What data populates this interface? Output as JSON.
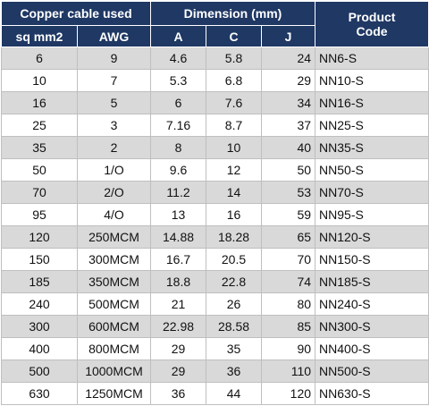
{
  "table": {
    "header_groups": [
      "Copper cable used",
      "Dimension (mm)",
      "Product Code"
    ],
    "columns": [
      "sq mm2",
      "AWG",
      "A",
      "C",
      "J"
    ],
    "rows": [
      [
        6,
        9,
        4.6,
        5.8,
        24,
        "NN6-S"
      ],
      [
        10,
        7,
        5.3,
        6.8,
        29,
        "NN10-S"
      ],
      [
        16,
        5,
        6,
        7.6,
        34,
        "NN16-S"
      ],
      [
        25,
        3,
        7.16,
        8.7,
        37,
        "NN25-S"
      ],
      [
        35,
        2,
        8,
        10,
        40,
        "NN35-S"
      ],
      [
        50,
        "1/O",
        9.6,
        12,
        50,
        "NN50-S"
      ],
      [
        70,
        "2/O",
        11.2,
        14,
        53,
        "NN70-S"
      ],
      [
        95,
        "4/O",
        13,
        16,
        59,
        "NN95-S"
      ],
      [
        120,
        "250MCM",
        14.88,
        18.28,
        65,
        "NN120-S"
      ],
      [
        150,
        "300MCM",
        16.7,
        20.5,
        70,
        "NN150-S"
      ],
      [
        185,
        "350MCM",
        18.8,
        22.8,
        74,
        "NN185-S"
      ],
      [
        240,
        "500MCM",
        21,
        26,
        80,
        "NN240-S"
      ],
      [
        300,
        "600MCM",
        22.98,
        28.58,
        85,
        "NN300-S"
      ],
      [
        400,
        "800MCM",
        29,
        35,
        90,
        "NN400-S"
      ],
      [
        500,
        "1000MCM",
        29,
        36,
        110,
        "NN500-S"
      ],
      [
        630,
        "1250MCM",
        36,
        44,
        120,
        "NN630-S"
      ]
    ]
  }
}
